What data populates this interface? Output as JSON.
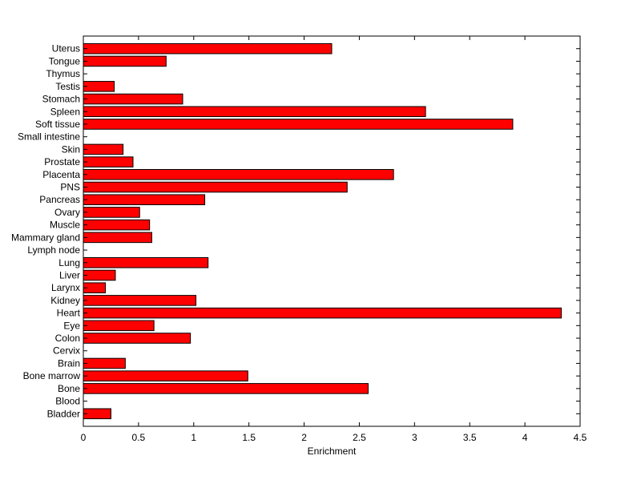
{
  "chart_data": {
    "type": "bar",
    "orientation": "horizontal",
    "title": "",
    "xlabel": "Enrichment",
    "ylabel": "",
    "xlim": [
      0,
      4.5
    ],
    "xticks": [
      "0",
      "0.5",
      "1",
      "1.5",
      "2",
      "2.5",
      "3",
      "3.5",
      "4",
      "4.5"
    ],
    "grid": false,
    "bar_color": "#ff0000",
    "categories": [
      "Bladder",
      "Blood",
      "Bone",
      "Bone marrow",
      "Brain",
      "Cervix",
      "Colon",
      "Eye",
      "Heart",
      "Kidney",
      "Larynx",
      "Liver",
      "Lung",
      "Lymph node",
      "Mammary gland",
      "Muscle",
      "Ovary",
      "Pancreas",
      "PNS",
      "Placenta",
      "Prostate",
      "Skin",
      "Small intestine",
      "Soft tissue",
      "Spleen",
      "Stomach",
      "Testis",
      "Thymus",
      "Tongue",
      "Uterus"
    ],
    "values": [
      0.25,
      0,
      2.58,
      1.49,
      0.38,
      0,
      0.97,
      0.64,
      4.33,
      1.02,
      0.2,
      0.29,
      1.13,
      0,
      0.62,
      0.6,
      0.51,
      1.1,
      2.39,
      2.81,
      0.45,
      0.36,
      0,
      3.89,
      3.1,
      0.9,
      0.28,
      0,
      0.75,
      2.25
    ]
  }
}
